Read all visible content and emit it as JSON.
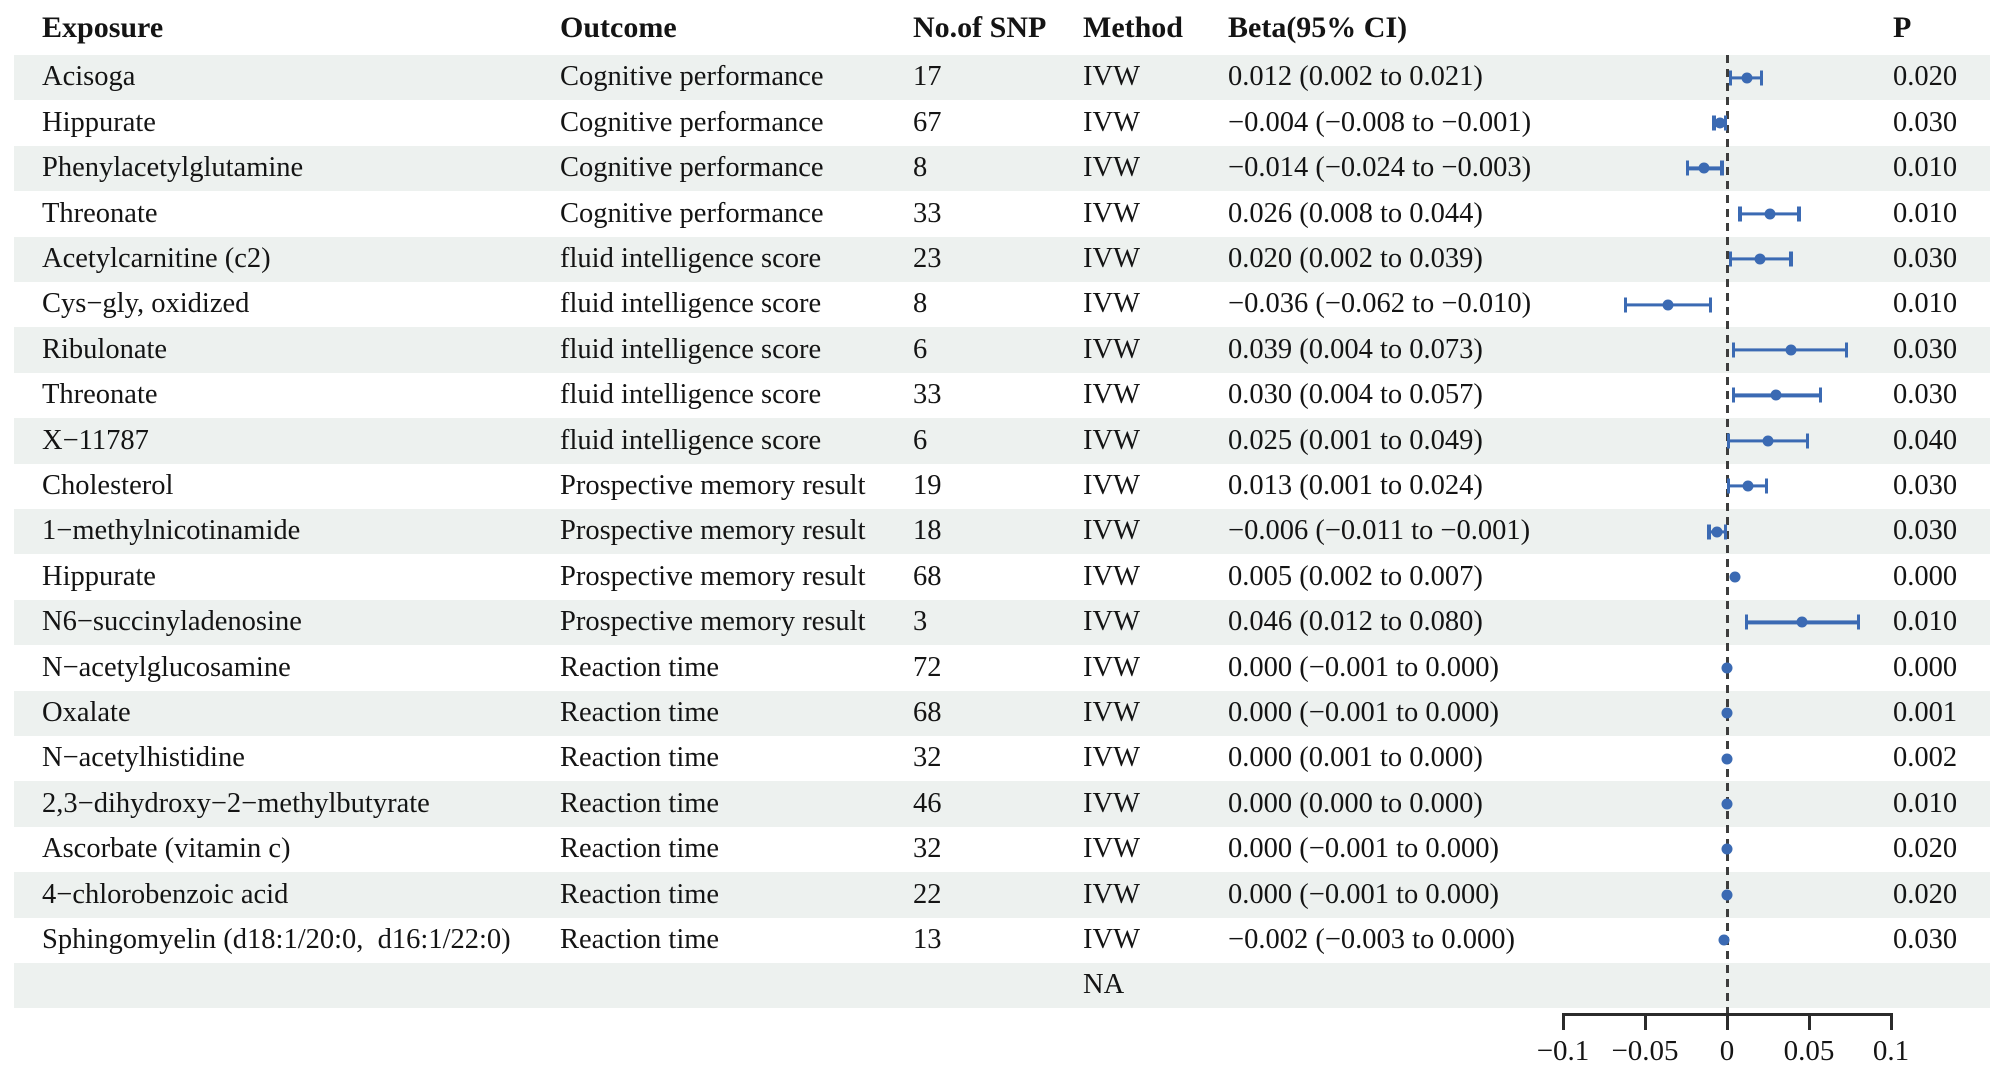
{
  "header": {
    "exposure": "Exposure",
    "outcome": "Outcome",
    "snp": "No.of SNP",
    "method": "Method",
    "beta": "Beta(95% CI)",
    "p": "P"
  },
  "rows": [
    {
      "exposure": "Acisoga",
      "outcome": "Cognitive performance",
      "snp": "17",
      "method": "IVW",
      "beta_ci": "0.012 (0.002 to 0.021)",
      "p": "0.020"
    },
    {
      "exposure": "Hippurate",
      "outcome": "Cognitive performance",
      "snp": "67",
      "method": "IVW",
      "beta_ci": "−0.004 (−0.008 to −0.001)",
      "p": "0.030"
    },
    {
      "exposure": "Phenylacetylglutamine",
      "outcome": "Cognitive performance",
      "snp": "8",
      "method": "IVW",
      "beta_ci": "−0.014 (−0.024 to −0.003)",
      "p": "0.010"
    },
    {
      "exposure": "Threonate",
      "outcome": "Cognitive performance",
      "snp": "33",
      "method": "IVW",
      "beta_ci": "0.026 (0.008 to 0.044)",
      "p": "0.010"
    },
    {
      "exposure": "Acetylcarnitine (c2)",
      "outcome": "fluid intelligence score",
      "snp": "23",
      "method": "IVW",
      "beta_ci": "0.020 (0.002 to 0.039)",
      "p": "0.030"
    },
    {
      "exposure": "Cys−gly, oxidized",
      "outcome": "fluid intelligence score",
      "snp": "8",
      "method": "IVW",
      "beta_ci": "−0.036 (−0.062 to −0.010)",
      "p": "0.010"
    },
    {
      "exposure": "Ribulonate",
      "outcome": "fluid intelligence score",
      "snp": "6",
      "method": "IVW",
      "beta_ci": "0.039 (0.004 to 0.073)",
      "p": "0.030"
    },
    {
      "exposure": "Threonate",
      "outcome": "fluid intelligence score",
      "snp": "33",
      "method": "IVW",
      "beta_ci": "0.030 (0.004 to 0.057)",
      "p": "0.030"
    },
    {
      "exposure": "X−11787",
      "outcome": "fluid intelligence score",
      "snp": "6",
      "method": "IVW",
      "beta_ci": "0.025 (0.001 to 0.049)",
      "p": "0.040"
    },
    {
      "exposure": "Cholesterol",
      "outcome": "Prospective memory result",
      "snp": "19",
      "method": "IVW",
      "beta_ci": "0.013 (0.001 to 0.024)",
      "p": "0.030"
    },
    {
      "exposure": "1−methylnicotinamide",
      "outcome": "Prospective memory result",
      "snp": "18",
      "method": "IVW",
      "beta_ci": "−0.006 (−0.011 to −0.001)",
      "p": "0.030"
    },
    {
      "exposure": "Hippurate",
      "outcome": "Prospective memory result",
      "snp": "68",
      "method": "IVW",
      "beta_ci": "0.005 (0.002 to 0.007)",
      "p": "0.000"
    },
    {
      "exposure": "N6−succinyladenosine",
      "outcome": "Prospective memory result",
      "snp": "3",
      "method": "IVW",
      "beta_ci": "0.046 (0.012 to 0.080)",
      "p": "0.010"
    },
    {
      "exposure": "N−acetylglucosamine",
      "outcome": "Reaction time",
      "snp": "72",
      "method": "IVW",
      "beta_ci": "0.000 (−0.001 to 0.000)",
      "p": "0.000"
    },
    {
      "exposure": "Oxalate",
      "outcome": "Reaction time",
      "snp": "68",
      "method": "IVW",
      "beta_ci": "0.000 (−0.001 to 0.000)",
      "p": "0.001"
    },
    {
      "exposure": "N−acetylhistidine",
      "outcome": "Reaction time",
      "snp": "32",
      "method": "IVW",
      "beta_ci": "0.000 (0.001 to 0.000)",
      "p": "0.002"
    },
    {
      "exposure": "2,3−dihydroxy−2−methylbutyrate",
      "outcome": "Reaction time",
      "snp": "46",
      "method": "IVW",
      "beta_ci": "0.000 (0.000 to 0.000)",
      "p": "0.010"
    },
    {
      "exposure": "Ascorbate (vitamin c)",
      "outcome": "Reaction time",
      "snp": "32",
      "method": "IVW",
      "beta_ci": "0.000 (−0.001 to 0.000)",
      "p": "0.020"
    },
    {
      "exposure": "4−chlorobenzoic acid",
      "outcome": "Reaction time",
      "snp": "22",
      "method": "IVW",
      "beta_ci": "0.000 (−0.001 to 0.000)",
      "p": "0.020"
    },
    {
      "exposure": "Sphingomyelin (d18:1/20:0,  d16:1/22:0)",
      "outcome": "Reaction time",
      "snp": "13",
      "method": "IVW",
      "beta_ci": "−0.002 (−0.003 to 0.000)",
      "p": "0.030"
    },
    {
      "exposure": "",
      "outcome": "",
      "snp": "",
      "method": "NA",
      "beta_ci": "",
      "p": ""
    }
  ],
  "chart_data": {
    "type": "scatter",
    "variant": "forest-plot",
    "title": "",
    "xlabel": "",
    "ylabel": "",
    "xlim": [
      -0.1,
      0.1
    ],
    "x_ticks": [
      -0.1,
      -0.05,
      0,
      0.05,
      0.1
    ],
    "x_tick_labels": [
      "−0.1",
      "−0.05",
      "0",
      "0.05",
      "0.1"
    ],
    "reference_line_x": 0,
    "grid": false,
    "legend": "none",
    "points": [
      {
        "exposure": "Acisoga",
        "outcome": "Cognitive performance",
        "beta": 0.012,
        "lo": 0.002,
        "hi": 0.021,
        "p": 0.02
      },
      {
        "exposure": "Hippurate",
        "outcome": "Cognitive performance",
        "beta": -0.004,
        "lo": -0.008,
        "hi": -0.001,
        "p": 0.03
      },
      {
        "exposure": "Phenylacetylglutamine",
        "outcome": "Cognitive performance",
        "beta": -0.014,
        "lo": -0.024,
        "hi": -0.003,
        "p": 0.01
      },
      {
        "exposure": "Threonate",
        "outcome": "Cognitive performance",
        "beta": 0.026,
        "lo": 0.008,
        "hi": 0.044,
        "p": 0.01
      },
      {
        "exposure": "Acetylcarnitine (c2)",
        "outcome": "fluid intelligence score",
        "beta": 0.02,
        "lo": 0.002,
        "hi": 0.039,
        "p": 0.03
      },
      {
        "exposure": "Cys−gly, oxidized",
        "outcome": "fluid intelligence score",
        "beta": -0.036,
        "lo": -0.062,
        "hi": -0.01,
        "p": 0.01
      },
      {
        "exposure": "Ribulonate",
        "outcome": "fluid intelligence score",
        "beta": 0.039,
        "lo": 0.004,
        "hi": 0.073,
        "p": 0.03
      },
      {
        "exposure": "Threonate",
        "outcome": "fluid intelligence score",
        "beta": 0.03,
        "lo": 0.004,
        "hi": 0.057,
        "p": 0.03
      },
      {
        "exposure": "X−11787",
        "outcome": "fluid intelligence score",
        "beta": 0.025,
        "lo": 0.001,
        "hi": 0.049,
        "p": 0.04
      },
      {
        "exposure": "Cholesterol",
        "outcome": "Prospective memory result",
        "beta": 0.013,
        "lo": 0.001,
        "hi": 0.024,
        "p": 0.03
      },
      {
        "exposure": "1−methylnicotinamide",
        "outcome": "Prospective memory result",
        "beta": -0.006,
        "lo": -0.011,
        "hi": -0.001,
        "p": 0.03
      },
      {
        "exposure": "Hippurate",
        "outcome": "Prospective memory result",
        "beta": 0.005,
        "lo": 0.002,
        "hi": 0.007,
        "p": 0.0
      },
      {
        "exposure": "N6−succinyladenosine",
        "outcome": "Prospective memory result",
        "beta": 0.046,
        "lo": 0.012,
        "hi": 0.08,
        "p": 0.01
      },
      {
        "exposure": "N−acetylglucosamine",
        "outcome": "Reaction time",
        "beta": 0.0,
        "lo": -0.001,
        "hi": 0.0,
        "p": 0.0
      },
      {
        "exposure": "Oxalate",
        "outcome": "Reaction time",
        "beta": 0.0,
        "lo": -0.001,
        "hi": 0.0,
        "p": 0.001
      },
      {
        "exposure": "N−acetylhistidine",
        "outcome": "Reaction time",
        "beta": 0.0,
        "lo": 0.001,
        "hi": 0.0,
        "p": 0.002
      },
      {
        "exposure": "2,3−dihydroxy−2−methylbutyrate",
        "outcome": "Reaction time",
        "beta": 0.0,
        "lo": 0.0,
        "hi": 0.0,
        "p": 0.01
      },
      {
        "exposure": "Ascorbate (vitamin c)",
        "outcome": "Reaction time",
        "beta": 0.0,
        "lo": -0.001,
        "hi": 0.0,
        "p": 0.02
      },
      {
        "exposure": "4−chlorobenzoic acid",
        "outcome": "Reaction time",
        "beta": 0.0,
        "lo": -0.001,
        "hi": 0.0,
        "p": 0.02
      },
      {
        "exposure": "Sphingomyelin (d18:1/20:0, d16:1/22:0)",
        "outcome": "Reaction time",
        "beta": -0.002,
        "lo": -0.003,
        "hi": 0.0,
        "p": 0.03
      },
      {
        "exposure": null,
        "outcome": null,
        "beta": null,
        "lo": null,
        "hi": null,
        "p": null
      }
    ],
    "colors": {
      "marker": "#3b6ab3",
      "error_bar": "#3b6ab3",
      "reference_line": "#3d3d3d",
      "axis": "#2b2b2b",
      "stripe": "#edf1ef"
    }
  }
}
